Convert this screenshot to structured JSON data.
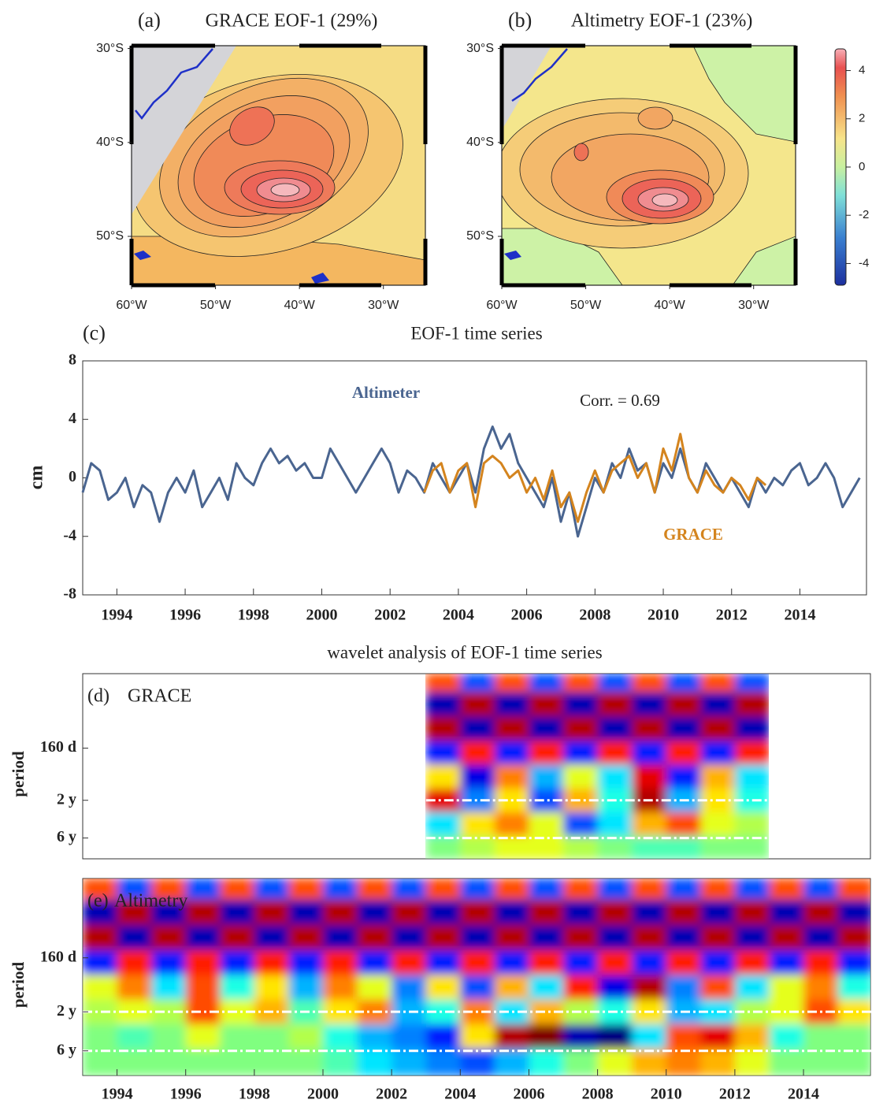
{
  "chart_data": [
    {
      "type": "map",
      "panel_label": "(a)",
      "title": "GRACE EOF-1 (29%)",
      "xlim": [
        -60,
        -25
      ],
      "ylim": [
        -55.2,
        -29.7
      ],
      "xticks": [
        {
          "value": -60,
          "label": "60°W"
        },
        {
          "value": -50,
          "label": "50°W"
        },
        {
          "value": -40,
          "label": "40°W"
        },
        {
          "value": -30,
          "label": "30°W"
        }
      ],
      "yticks": [
        {
          "value": -30,
          "label": "30°S"
        },
        {
          "value": -40,
          "label": "40°S"
        },
        {
          "value": -50,
          "label": "50°S"
        }
      ]
    },
    {
      "type": "map",
      "panel_label": "(b)",
      "title": "Altimetry EOF-1 (23%)",
      "xlim": [
        -60,
        -25
      ],
      "ylim": [
        -55.2,
        -29.7
      ],
      "xticks": [
        {
          "value": -60,
          "label": "60°W"
        },
        {
          "value": -50,
          "label": "50°W"
        },
        {
          "value": -40,
          "label": "40°W"
        },
        {
          "value": -30,
          "label": "30°W"
        }
      ],
      "yticks": [
        {
          "value": -30,
          "label": "30°S"
        },
        {
          "value": -40,
          "label": "40°S"
        },
        {
          "value": -50,
          "label": "50°S"
        }
      ],
      "colorbar": {
        "lim": [
          -4.9,
          4.9
        ],
        "ticks": [
          4,
          2,
          0,
          -2,
          -4
        ]
      }
    },
    {
      "type": "line",
      "panel_label": "(c)",
      "title": "EOF-1 time series",
      "ylabel": "cm",
      "annotations": [
        "Corr. = 0.69"
      ],
      "xlim": [
        1993,
        2015.95
      ],
      "ylim": [
        -8,
        8
      ],
      "xticks": [
        1994,
        1996,
        1998,
        2000,
        2002,
        2004,
        2006,
        2008,
        2010,
        2012,
        2014
      ],
      "yticks": [
        -8,
        -4,
        0,
        4,
        8
      ],
      "x": [
        1993,
        1993.25,
        1993.5,
        1993.75,
        1994,
        1994.25,
        1994.5,
        1994.75,
        1995,
        1995.25,
        1995.5,
        1995.75,
        1996,
        1996.25,
        1996.5,
        1996.75,
        1997,
        1997.25,
        1997.5,
        1997.75,
        1998,
        1998.25,
        1998.5,
        1998.75,
        1999,
        1999.25,
        1999.5,
        1999.75,
        2000,
        2000.25,
        2000.5,
        2000.75,
        2001,
        2001.25,
        2001.5,
        2001.75,
        2002,
        2002.25,
        2002.5,
        2002.75,
        2003,
        2003.25,
        2003.5,
        2003.75,
        2004,
        2004.25,
        2004.5,
        2004.75,
        2005,
        2005.25,
        2005.5,
        2005.75,
        2006,
        2006.25,
        2006.5,
        2006.75,
        2007,
        2007.25,
        2007.5,
        2007.75,
        2008,
        2008.25,
        2008.5,
        2008.75,
        2009,
        2009.25,
        2009.5,
        2009.75,
        2010,
        2010.25,
        2010.5,
        2010.75,
        2011,
        2011.25,
        2011.5,
        2011.75,
        2012,
        2012.25,
        2012.5,
        2012.75,
        2013,
        2013.25,
        2013.5,
        2013.75,
        2014,
        2014.25,
        2014.5,
        2014.75,
        2015,
        2015.25,
        2015.5,
        2015.75
      ],
      "series": [
        {
          "name": "Altimeter",
          "color": "#4a6590",
          "values": [
            -1,
            1,
            0.5,
            -1.5,
            -1,
            0,
            -2,
            -0.5,
            -1,
            -3,
            -1,
            0,
            -1,
            0.5,
            -2,
            -1,
            0,
            -1.5,
            1,
            0,
            -0.5,
            1,
            2,
            1,
            1.5,
            0.5,
            1,
            0,
            0,
            2,
            1,
            0,
            -1,
            0,
            1,
            2,
            1,
            -1,
            0.5,
            0,
            -1,
            1,
            0,
            -1,
            0,
            1,
            -1,
            2,
            3.5,
            2,
            3,
            1,
            0,
            -1,
            -2,
            0,
            -3,
            -1,
            -4,
            -2,
            0,
            -1,
            1,
            0,
            2,
            0.5,
            1,
            -1,
            1,
            0,
            2,
            0,
            -1,
            1,
            0,
            -1,
            0,
            -1,
            -2,
            0,
            -1,
            0,
            -0.5,
            0.5,
            1,
            -0.5,
            0,
            1,
            0,
            -2,
            -1,
            0
          ]
        },
        {
          "name": "GRACE",
          "color": "#d4841e",
          "values": [
            null,
            null,
            null,
            null,
            null,
            null,
            null,
            null,
            null,
            null,
            null,
            null,
            null,
            null,
            null,
            null,
            null,
            null,
            null,
            null,
            null,
            null,
            null,
            null,
            null,
            null,
            null,
            null,
            null,
            null,
            null,
            null,
            null,
            null,
            null,
            null,
            null,
            null,
            null,
            null,
            -1,
            0.5,
            1,
            -1,
            0.5,
            1,
            -2,
            1,
            1.5,
            1,
            0,
            0.5,
            -1,
            0,
            -1.5,
            0.5,
            -2,
            -1,
            -3,
            -1,
            0.5,
            -1,
            0.5,
            1,
            1.5,
            0,
            1,
            -1,
            2,
            0.5,
            3,
            0,
            -1,
            0.5,
            -0.5,
            -1,
            0,
            -0.5,
            -1.5,
            0,
            -0.5,
            null,
            null,
            null,
            null,
            null,
            null,
            null,
            null,
            null,
            null,
            null
          ]
        }
      ]
    },
    {
      "type": "heatmap",
      "title": "wavelet analysis of EOF-1 time series",
      "panel_label": "(d)",
      "label": "GRACE",
      "ylabel": "period",
      "log_y": true,
      "xlim": [
        1993,
        2015.95
      ],
      "ylim": [
        0.05,
        11
      ],
      "yticks": [
        {
          "value": 0.438,
          "label": "160 d"
        },
        {
          "value": 2,
          "label": "2 y"
        },
        {
          "value": 6,
          "label": "6 y"
        }
      ],
      "ref_lines": [
        2,
        6
      ],
      "x": [
        2003.5,
        2004.5,
        2005.5,
        2006.5,
        2007.5,
        2008.5,
        2009.5,
        2010.5,
        2011.5,
        2012.5
      ],
      "y": [
        0.06,
        0.12,
        0.25,
        0.5,
        1,
        2,
        4,
        8
      ],
      "z": [
        [
          0.6,
          -0.6,
          0.6,
          -0.6,
          0.6,
          -0.6,
          0.6,
          -0.6,
          0.6,
          -0.6
        ],
        [
          -0.9,
          0.9,
          -0.9,
          0.9,
          -0.9,
          0.9,
          -0.9,
          0.9,
          -0.9,
          0.9
        ],
        [
          0.9,
          -0.9,
          0.9,
          -0.9,
          0.9,
          -0.9,
          0.9,
          -0.9,
          0.9,
          -0.9
        ],
        [
          -0.7,
          0.7,
          -0.7,
          0.7,
          -0.7,
          0.7,
          -0.7,
          0.7,
          -0.7,
          0.7
        ],
        [
          0.3,
          -0.8,
          0.5,
          -0.4,
          0.2,
          -0.3,
          0.8,
          -0.7,
          0.4,
          -0.3
        ],
        [
          0.8,
          -0.5,
          0.3,
          -0.6,
          0.4,
          -0.2,
          0.9,
          -0.4,
          0.3,
          -0.2
        ],
        [
          -0.3,
          0.3,
          0.5,
          0.2,
          -0.6,
          -0.3,
          0.4,
          0.6,
          0.2,
          0.1
        ],
        [
          0,
          0.1,
          0.2,
          0.2,
          0.1,
          0,
          -0.1,
          -0.1,
          0,
          0
        ]
      ]
    },
    {
      "type": "heatmap",
      "panel_label": "(e)",
      "label": "Altimetry",
      "ylabel": "period",
      "log_y": true,
      "xlim": [
        1993,
        2015.95
      ],
      "ylim": [
        0.047,
        12
      ],
      "xticks": [
        1994,
        1996,
        1998,
        2000,
        2002,
        2004,
        2006,
        2008,
        2010,
        2012,
        2014
      ],
      "yticks": [
        {
          "value": 0.438,
          "label": "160 d"
        },
        {
          "value": 2,
          "label": "2 y"
        },
        {
          "value": 6,
          "label": "6 y"
        }
      ],
      "ref_lines": [
        2,
        6
      ],
      "x": [
        1993.5,
        1994.5,
        1995.5,
        1996.5,
        1997.5,
        1998.5,
        1999.5,
        2000.5,
        2001.5,
        2002.5,
        2003.5,
        2004.5,
        2005.5,
        2006.5,
        2007.5,
        2008.5,
        2009.5,
        2010.5,
        2011.5,
        2012.5,
        2013.5,
        2014.5,
        2015.5
      ],
      "y": [
        0.06,
        0.12,
        0.25,
        0.5,
        1,
        2,
        4,
        8
      ],
      "z": [
        [
          0.6,
          -0.6,
          0.6,
          -0.6,
          0.6,
          -0.6,
          0.6,
          -0.6,
          0.6,
          -0.6,
          0.6,
          -0.6,
          0.6,
          -0.6,
          0.6,
          -0.6,
          0.6,
          -0.6,
          0.6,
          -0.6,
          0.6,
          -0.6,
          0.6
        ],
        [
          -0.9,
          0.9,
          -0.9,
          0.9,
          -0.9,
          0.9,
          -0.9,
          0.9,
          -0.9,
          0.9,
          -0.9,
          0.9,
          -0.9,
          0.9,
          -0.9,
          0.9,
          -0.9,
          0.9,
          -0.9,
          0.9,
          -0.9,
          0.9,
          -0.9
        ],
        [
          0.9,
          -0.9,
          0.9,
          -0.9,
          0.9,
          -0.9,
          0.9,
          -0.9,
          0.9,
          -0.9,
          0.9,
          -0.9,
          0.9,
          -0.9,
          0.9,
          -0.9,
          0.9,
          -0.9,
          0.9,
          -0.9,
          0.9,
          -0.9,
          0.9
        ],
        [
          -0.7,
          0.7,
          -0.7,
          0.7,
          -0.7,
          0.7,
          -0.7,
          0.7,
          -0.7,
          0.7,
          -0.7,
          0.7,
          -0.7,
          0.7,
          -0.7,
          0.7,
          -0.7,
          0.7,
          -0.7,
          0.7,
          -0.7,
          0.7,
          -0.7
        ],
        [
          0.2,
          0.5,
          -0.3,
          0.6,
          -0.2,
          0.3,
          -0.4,
          0.5,
          0.2,
          -0.5,
          0.3,
          -0.6,
          0.4,
          -0.3,
          0.7,
          -0.8,
          0.9,
          -0.5,
          0.6,
          -0.3,
          0.2,
          0.5,
          -0.2
        ],
        [
          0.1,
          0.2,
          0.1,
          0.6,
          0.2,
          0.4,
          -0.1,
          0.3,
          0.5,
          -0.4,
          -0.2,
          0.5,
          -0.3,
          0.4,
          0.1,
          -0.2,
          0.3,
          -0.4,
          -0.3,
          0.1,
          0.2,
          0.6,
          0.3
        ],
        [
          0,
          -0.1,
          0,
          0.2,
          0,
          0,
          0.1,
          -0.2,
          -0.4,
          -0.5,
          -0.7,
          0.3,
          0.9,
          1,
          -0.9,
          -1,
          -0.3,
          0.6,
          0.8,
          0.4,
          -0.2,
          0,
          0
        ],
        [
          0,
          0,
          0,
          0,
          0,
          0,
          0,
          -0.1,
          -0.3,
          -0.4,
          -0.5,
          -0.6,
          -0.4,
          -0.2,
          0,
          0.2,
          0.4,
          0.5,
          0.4,
          0.2,
          0,
          0,
          0
        ]
      ]
    }
  ]
}
